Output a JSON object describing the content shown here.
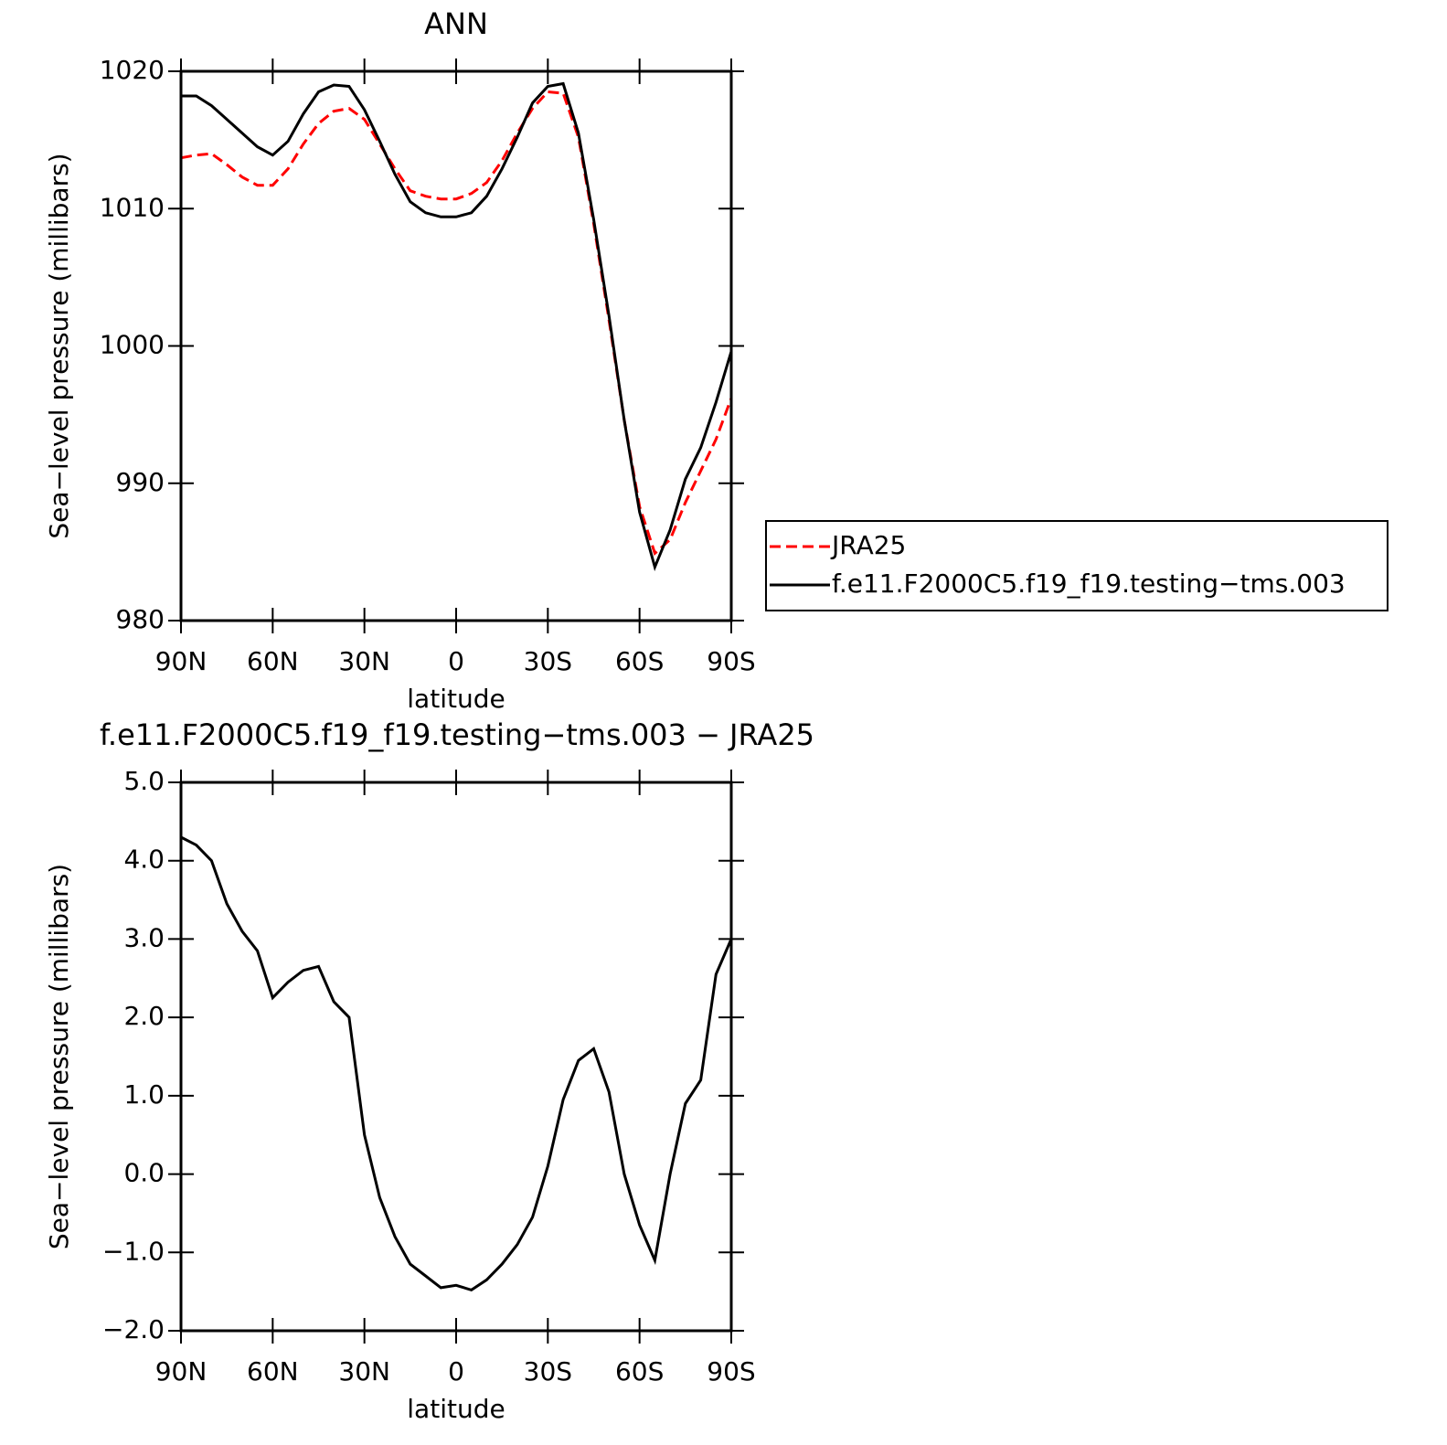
{
  "chart_data": [
    {
      "type": "line",
      "title": "ANN",
      "x_label": "latitude",
      "y_label": "Sea−level pressure (millibars)",
      "x": [
        90,
        85,
        80,
        75,
        70,
        65,
        60,
        55,
        50,
        45,
        40,
        35,
        30,
        25,
        20,
        15,
        10,
        5,
        0,
        -5,
        -10,
        -15,
        -20,
        -25,
        -30,
        -35,
        -40,
        -45,
        -50,
        -55,
        -60,
        -65,
        -70,
        -75,
        -80,
        -85,
        -90
      ],
      "series": [
        {
          "name": "JRA25",
          "color": "#ff0000",
          "dash": "dashed",
          "values": [
            1013.7,
            1013.9,
            1014.0,
            1013.2,
            1012.3,
            1011.7,
            1011.7,
            1012.9,
            1014.7,
            1016.2,
            1017.1,
            1017.3,
            1016.5,
            1014.7,
            1012.9,
            1011.3,
            1010.9,
            1010.7,
            1010.7,
            1011.1,
            1011.9,
            1013.5,
            1015.5,
            1017.3,
            1018.5,
            1018.4,
            1015.2,
            1008.9,
            1001.9,
            994.6,
            988.3,
            984.9,
            985.9,
            988.6,
            990.9,
            993.2,
            996.2
          ]
        },
        {
          "name": "f.e11.F2000C5.f19_f19.testing−tms.003",
          "color": "#000000",
          "dash": "solid",
          "values": [
            1018.2,
            1018.2,
            1017.5,
            1016.5,
            1015.5,
            1014.5,
            1013.9,
            1014.9,
            1016.9,
            1018.5,
            1019.0,
            1018.9,
            1017.2,
            1014.9,
            1012.5,
            1010.5,
            1009.7,
            1009.4,
            1009.4,
            1009.7,
            1010.9,
            1012.9,
            1015.2,
            1017.7,
            1018.9,
            1019.1,
            1015.5,
            1009.2,
            1002.2,
            994.6,
            987.9,
            983.9,
            986.6,
            990.3,
            992.6,
            995.9,
            999.6
          ]
        }
      ],
      "xlim": [
        90,
        -90
      ],
      "xticks": [
        {
          "value": 90,
          "label": "90N"
        },
        {
          "value": 60,
          "label": "60N"
        },
        {
          "value": 30,
          "label": "30N"
        },
        0,
        {
          "value": -30,
          "label": "30S"
        },
        {
          "value": -60,
          "label": "60S"
        },
        {
          "value": -90,
          "label": "90S"
        }
      ],
      "ylim": [
        980,
        1020
      ],
      "yticks": [
        980,
        990,
        1000,
        1010,
        1020
      ],
      "legend": "right"
    },
    {
      "type": "line",
      "title": "f.e11.F2000C5.f19_f19.testing−tms.003 − JRA25",
      "x_label": "latitude",
      "y_label": "Sea−level pressure (millibars)",
      "x": [
        90,
        85,
        80,
        75,
        70,
        65,
        60,
        55,
        50,
        45,
        40,
        35,
        30,
        25,
        20,
        15,
        10,
        5,
        0,
        -5,
        -10,
        -15,
        -20,
        -25,
        -30,
        -35,
        -40,
        -45,
        -50,
        -55,
        -60,
        -65,
        -70,
        -75,
        -80,
        -85,
        -90
      ],
      "series": [
        {
          "color": "#000000",
          "dash": "solid",
          "values": [
            4.3,
            4.2,
            4.0,
            3.45,
            3.1,
            2.85,
            2.25,
            2.45,
            2.6,
            2.65,
            2.2,
            2.0,
            0.5,
            -0.3,
            -0.8,
            -1.15,
            -1.3,
            -1.45,
            -1.42,
            -1.48,
            -1.35,
            -1.15,
            -0.9,
            -0.55,
            0.1,
            0.95,
            1.45,
            1.6,
            1.05,
            0.0,
            -0.65,
            -1.1,
            0.0,
            0.9,
            1.2,
            2.55,
            3.0
          ]
        }
      ],
      "xlim": [
        90,
        -90
      ],
      "xticks": [
        {
          "value": 90,
          "label": "90N"
        },
        {
          "value": 60,
          "label": "60N"
        },
        {
          "value": 30,
          "label": "30N"
        },
        0,
        {
          "value": -30,
          "label": "30S"
        },
        {
          "value": -60,
          "label": "60S"
        },
        {
          "value": -90,
          "label": "90S"
        }
      ],
      "ylim": [
        -2,
        5
      ],
      "yticks": [
        {
          "value": -2,
          "label": "−2.0"
        },
        {
          "value": -1,
          "label": "−1.0"
        },
        {
          "value": 0,
          "label": "0.0"
        },
        {
          "value": 1,
          "label": "1.0"
        },
        {
          "value": 2,
          "label": "2.0"
        },
        {
          "value": 3,
          "label": "3.0"
        },
        {
          "value": 4,
          "label": "4.0"
        },
        {
          "value": 5,
          "label": "5.0"
        }
      ]
    }
  ]
}
